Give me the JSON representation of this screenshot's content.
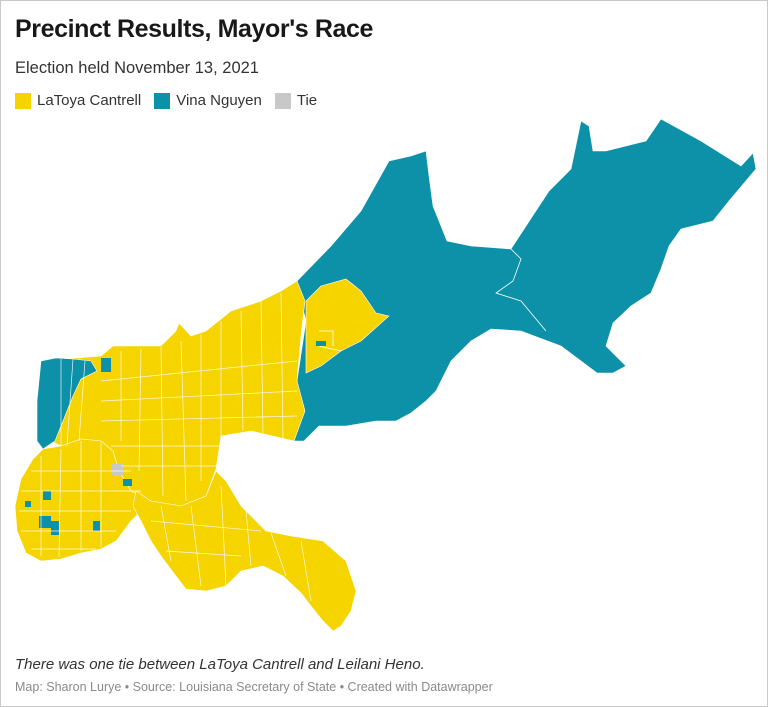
{
  "header": {
    "title": "Precinct Results, Mayor's Race",
    "subtitle": "Election held November 13, 2021"
  },
  "legend": [
    {
      "label": "LaToya Cantrell",
      "color": "#f5d400"
    },
    {
      "label": "Vina Nguyen",
      "color": "#0c91a8"
    },
    {
      "label": "Tie",
      "color": "#c8c8c8"
    }
  ],
  "map": {
    "region_colors": {
      "cantrell": "#f5d400",
      "nguyen": "#0c91a8",
      "tie": "#c8c8c8",
      "border": "#ffffff"
    }
  },
  "footer": {
    "note": "There was one tie between LaToya Cantrell and Leilani Heno.",
    "credits": "Map: Sharon Lurye • Source: Louisiana Secretary of State • Created with Datawrapper"
  }
}
